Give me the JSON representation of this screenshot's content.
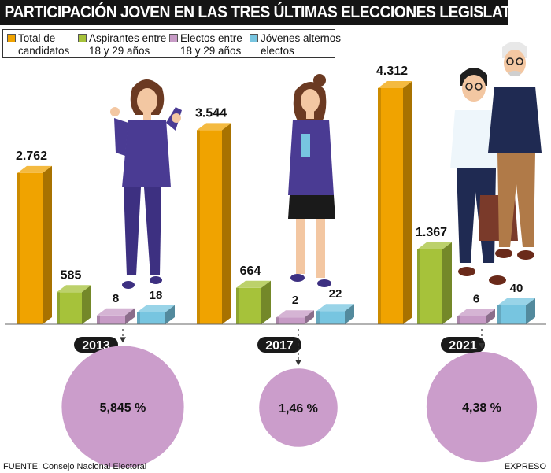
{
  "title": "PARTICIPACIÓN JOVEN EN LAS TRES ÚLTIMAS ELECCIONES LEGISLATIVAS",
  "legend": [
    {
      "label": "Total de\ncandidatos",
      "color": "#f0a300"
    },
    {
      "label": "Aspirantes entre\n18 y 29 años",
      "color": "#a6c23a"
    },
    {
      "label": "Electos entre\n18 y 29 años",
      "color": "#c79bc6"
    },
    {
      "label": "Jóvenes alternos\nelectos",
      "color": "#77c5e0"
    }
  ],
  "chart_data": {
    "type": "bar",
    "title": "PARTICIPACIÓN JOVEN EN LAS TRES ÚLTIMAS ELECCIONES LEGISLATIVAS",
    "categories": [
      "2013",
      "2017",
      "2021"
    ],
    "series": [
      {
        "name": "Total de candidatos",
        "values": [
          2762,
          3544,
          4312
        ],
        "labels": [
          "2.762",
          "3.544",
          "4.312"
        ]
      },
      {
        "name": "Aspirantes entre 18 y 29 años",
        "values": [
          585,
          664,
          1367
        ],
        "labels": [
          "585",
          "664",
          "1.367"
        ]
      },
      {
        "name": "Electos entre 18 y 29 años",
        "values": [
          8,
          2,
          6
        ],
        "labels": [
          "8",
          "2",
          "6"
        ]
      },
      {
        "name": "Jóvenes alternos electos",
        "values": [
          18,
          22,
          40
        ],
        "labels": [
          "18",
          "22",
          "40"
        ]
      }
    ],
    "percentages": [
      {
        "year": "2013",
        "value": 5.845,
        "label": "5,845 %"
      },
      {
        "year": "2017",
        "value": 1.46,
        "label": "1,46 %"
      },
      {
        "year": "2021",
        "value": 4.38,
        "label": "4,38 %"
      }
    ],
    "colors": {
      "total": "#f0a300",
      "aspirantes": "#a6c23a",
      "electos": "#c79bc6",
      "alternos": "#77c5e0",
      "circle": "#cb9dcb"
    }
  },
  "footer": {
    "source": "FUENTE: Consejo Nacional Electoral",
    "brand": "EXPRESO"
  }
}
